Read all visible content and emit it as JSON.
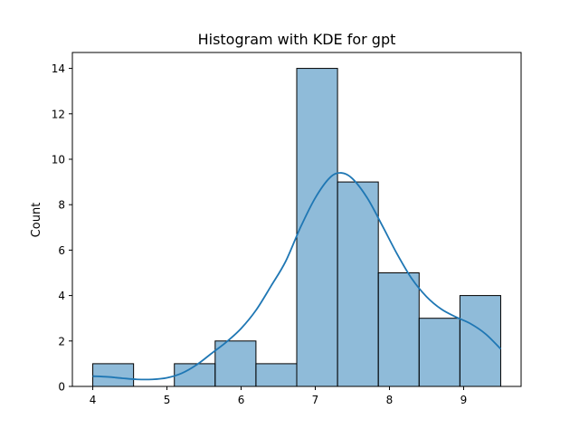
{
  "chart_data": {
    "type": "bar",
    "title": "Histogram with KDE for gpt",
    "xlabel": "",
    "ylabel": "Count",
    "xlim": [
      3.725,
      9.775
    ],
    "ylim": [
      0,
      14.7
    ],
    "x_ticks": [
      4,
      5,
      6,
      7,
      8,
      9
    ],
    "y_ticks": [
      0,
      2,
      4,
      6,
      8,
      10,
      12,
      14
    ],
    "bins": [
      {
        "start": 4.0,
        "end": 4.55,
        "count": 1
      },
      {
        "start": 4.55,
        "end": 5.1,
        "count": 0
      },
      {
        "start": 5.1,
        "end": 5.65,
        "count": 1
      },
      {
        "start": 5.65,
        "end": 6.2,
        "count": 2
      },
      {
        "start": 6.2,
        "end": 6.75,
        "count": 1
      },
      {
        "start": 6.75,
        "end": 7.3,
        "count": 14
      },
      {
        "start": 7.3,
        "end": 7.85,
        "count": 9
      },
      {
        "start": 7.85,
        "end": 8.4,
        "count": 5
      },
      {
        "start": 8.4,
        "end": 8.95,
        "count": 3
      },
      {
        "start": 8.95,
        "end": 9.5,
        "count": 4
      }
    ],
    "kde": {
      "x": [
        4.0,
        4.2,
        4.4,
        4.6,
        4.8,
        5.0,
        5.2,
        5.4,
        5.6,
        5.8,
        6.0,
        6.2,
        6.4,
        6.6,
        6.8,
        7.0,
        7.2,
        7.35,
        7.5,
        7.7,
        7.9,
        8.1,
        8.3,
        8.5,
        8.7,
        8.9,
        9.1,
        9.3,
        9.5
      ],
      "y": [
        0.45,
        0.42,
        0.36,
        0.31,
        0.31,
        0.38,
        0.58,
        0.95,
        1.45,
        1.95,
        2.55,
        3.35,
        4.4,
        5.5,
        7.0,
        8.3,
        9.2,
        9.4,
        9.15,
        8.3,
        7.1,
        5.85,
        4.75,
        3.95,
        3.4,
        3.05,
        2.75,
        2.3,
        1.65
      ]
    },
    "bar_color": "#1f77b4",
    "kde_color": "#1f77b4",
    "grid": false,
    "legend": "none"
  }
}
